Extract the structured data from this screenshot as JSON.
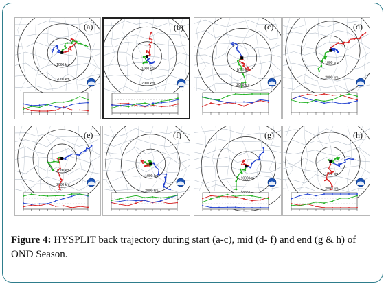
{
  "figure": {
    "caption_label": "Figure 4:",
    "caption_text": " HYSPLIT back trajectory during start (a-c), mid (d- f) and end (g & h) of OND Season.",
    "colors": {
      "border": "#2e7d8c",
      "red": "#d62020",
      "blue": "#1f3fcf",
      "green": "#1fb01f",
      "grid": "#9aa7b6"
    },
    "panels": [
      {
        "id": "a",
        "label": "(a)",
        "ring_labels": [
          "1000 km",
          "2000 km"
        ]
      },
      {
        "id": "b",
        "label": "(b)",
        "ring_labels": [
          "1000 km",
          "2000 km"
        ]
      },
      {
        "id": "c",
        "label": "(c)",
        "ring_labels": [
          "1000 km",
          "2000 km"
        ]
      },
      {
        "id": "d",
        "label": "(d)",
        "ring_labels": [
          "1000 km",
          "2000 km"
        ]
      },
      {
        "id": "e",
        "label": "(e)",
        "ring_labels": [
          "1000 km",
          "2000 km"
        ]
      },
      {
        "id": "f",
        "label": "(f)",
        "ring_labels": [
          "1000 km",
          "2000 km"
        ]
      },
      {
        "id": "g",
        "label": "(g)",
        "ring_labels": [
          "1000 km",
          "2000 km"
        ]
      },
      {
        "id": "h",
        "label": "(h)",
        "ring_labels": [
          "1000 km",
          "2000 km"
        ]
      }
    ]
  }
}
